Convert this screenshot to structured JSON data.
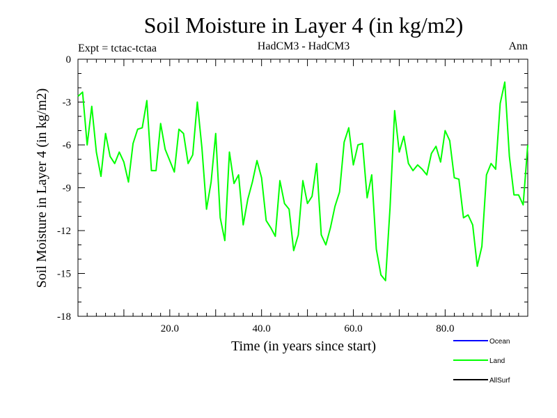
{
  "chart_data": {
    "type": "line",
    "title": "Soil Moisture in Layer 4 (in kg/m2)",
    "subtitle_left": "Expt = tctac-tctaa",
    "subtitle_center": "HadCM3 - HadCM3",
    "subtitle_right": "Ann",
    "xlabel": "Time (in years since start)",
    "ylabel": "Soil Moisture in Layer 4 (in kg/m2)",
    "xlim": [
      0,
      98
    ],
    "ylim": [
      -18,
      0
    ],
    "x_ticks": [
      20,
      40,
      60,
      80
    ],
    "x_tick_labels": [
      "20.0",
      "40.0",
      "60.0",
      "80.0"
    ],
    "y_ticks": [
      0,
      -3,
      -6,
      -9,
      -12,
      -15,
      -18
    ],
    "y_tick_labels": [
      "0",
      "-3",
      "-6",
      "-9",
      "-12",
      "-15",
      "-18"
    ],
    "legend": [
      {
        "name": "Ocean",
        "color": "#0000ff"
      },
      {
        "name": "Land",
        "color": "#00ff00"
      },
      {
        "name": "AllSurf",
        "color": "#000000"
      }
    ],
    "series": [
      {
        "name": "Land",
        "color": "#00ff00",
        "x": [
          0,
          1,
          2,
          3,
          4,
          5,
          6,
          7,
          8,
          9,
          10,
          11,
          12,
          13,
          14,
          15,
          16,
          17,
          18,
          19,
          20,
          21,
          22,
          23,
          24,
          25,
          26,
          27,
          28,
          29,
          30,
          31,
          32,
          33,
          34,
          35,
          36,
          37,
          38,
          39,
          40,
          41,
          42,
          43,
          44,
          45,
          46,
          47,
          48,
          49,
          50,
          51,
          52,
          53,
          54,
          55,
          56,
          57,
          58,
          59,
          60,
          61,
          62,
          63,
          64,
          65,
          66,
          67,
          68,
          69,
          70,
          71,
          72,
          73,
          74,
          75,
          76,
          77,
          78,
          79,
          80,
          81,
          82,
          83,
          84,
          85,
          86,
          87,
          88,
          89,
          90,
          91,
          92,
          93,
          94,
          95,
          96,
          97,
          98
        ],
        "values": [
          -2.6,
          -2.3,
          -6.0,
          -3.3,
          -6.5,
          -8.2,
          -5.2,
          -6.8,
          -7.3,
          -6.5,
          -7.2,
          -8.6,
          -5.9,
          -4.9,
          -4.8,
          -2.9,
          -7.8,
          -7.8,
          -4.5,
          -6.3,
          -7.1,
          -7.9,
          -4.9,
          -5.2,
          -7.3,
          -6.7,
          -3.0,
          -6.2,
          -10.5,
          -8.6,
          -5.2,
          -11.1,
          -12.7,
          -6.5,
          -8.7,
          -8.1,
          -11.6,
          -9.8,
          -8.6,
          -7.1,
          -8.3,
          -11.3,
          -11.8,
          -12.4,
          -8.5,
          -10.1,
          -10.5,
          -13.4,
          -12.3,
          -8.5,
          -10.1,
          -9.6,
          -7.3,
          -12.3,
          -13.0,
          -11.8,
          -10.3,
          -9.3,
          -5.8,
          -4.8,
          -7.4,
          -6.0,
          -5.9,
          -9.7,
          -8.1,
          -13.3,
          -15.1,
          -15.5,
          -10.4,
          -3.6,
          -6.5,
          -5.4,
          -7.3,
          -7.8,
          -7.4,
          -7.7,
          -8.1,
          -6.6,
          -6.1,
          -7.2,
          -5.0,
          -5.7,
          -8.3,
          -8.4,
          -11.1,
          -10.9,
          -11.6,
          -14.5,
          -13.1,
          -8.1,
          -7.3,
          -7.7,
          -3.1,
          -1.6,
          -6.8,
          -9.5,
          -9.5,
          -10.2,
          -6.0
        ]
      }
    ]
  }
}
